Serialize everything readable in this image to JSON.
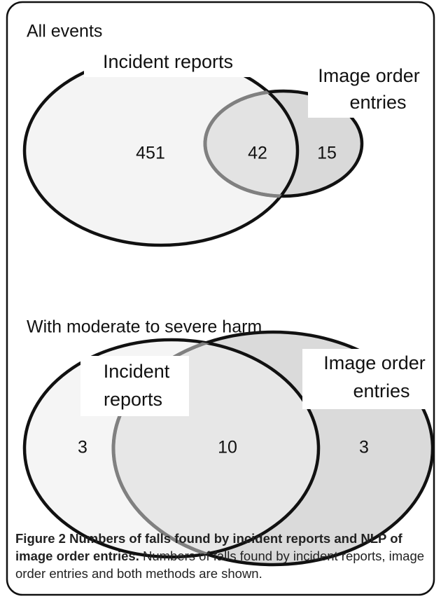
{
  "panels": [
    {
      "title": "All events",
      "set_a": [
        "Incident reports"
      ],
      "set_b": [
        "Image order",
        "entries"
      ],
      "regions": {
        "a_only": 451,
        "both": 42,
        "b_only": 15
      }
    },
    {
      "title": "With moderate to severe harm",
      "set_a": [
        "Incident",
        "reports"
      ],
      "set_b": [
        "Image order",
        "entries"
      ],
      "regions": {
        "a_only": 3,
        "both": 10,
        "b_only": 3
      }
    }
  ],
  "caption": {
    "label": "Figure 2",
    "title": "Numbers of falls found by incident reports and NLP of image order entries.",
    "text": "Numbers of falls found by incident reports, image order entries and both methods are shown."
  }
}
